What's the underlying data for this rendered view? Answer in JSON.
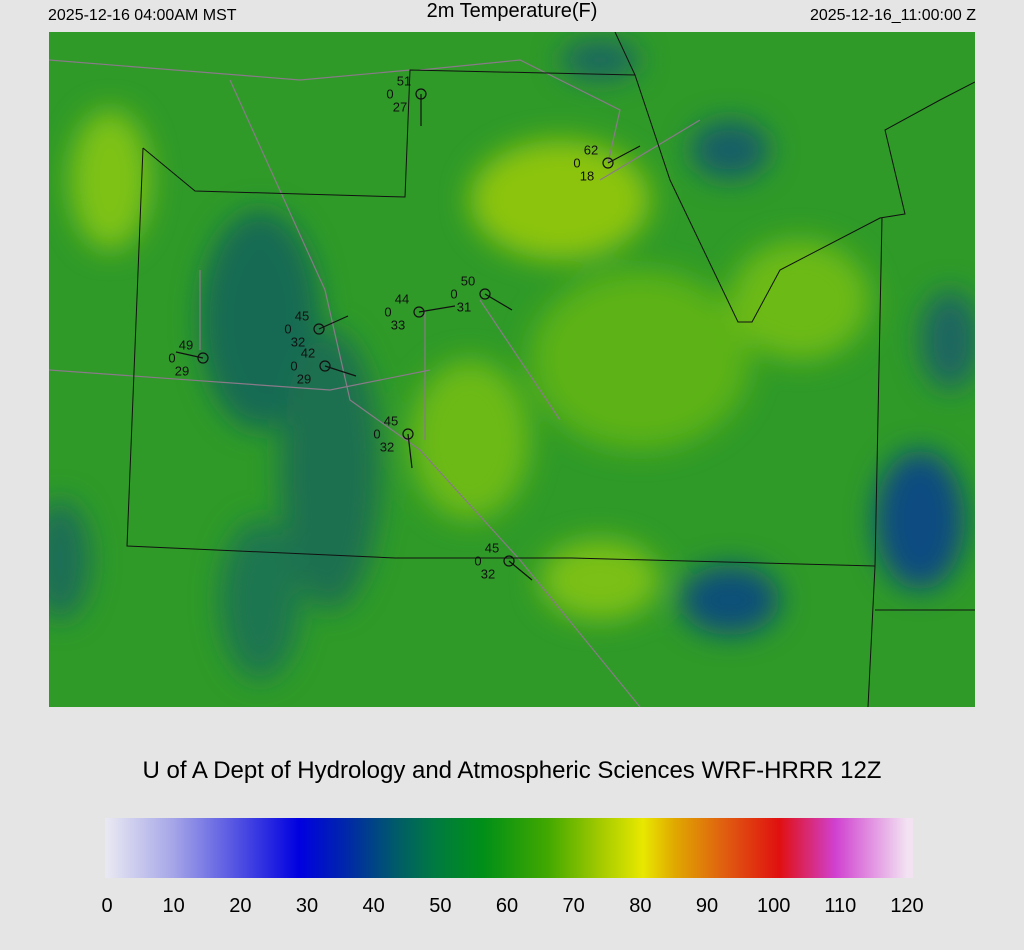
{
  "header": {
    "left": "2025-12-16 04:00AM MST",
    "title": "2m Temperature(F)",
    "right": "2025-12-16_11:00:00 Z"
  },
  "stations": [
    {
      "top": "51",
      "left": "0",
      "bottom": "27"
    },
    {
      "top": "62",
      "left": "0",
      "bottom": "18"
    },
    {
      "top": "50",
      "left": "0",
      "bottom": "31"
    },
    {
      "top": "44",
      "left": "0",
      "bottom": "33"
    },
    {
      "top": "45",
      "left": "0",
      "bottom": "32"
    },
    {
      "top": "42",
      "left": "0",
      "bottom": "29"
    },
    {
      "top": "49",
      "left": "0",
      "bottom": "29"
    },
    {
      "top": "45",
      "left": "0",
      "bottom": "32"
    },
    {
      "top": "45",
      "left": "0",
      "bottom": "32"
    }
  ],
  "footer": "U of A Dept of Hydrology and Atmospheric Sciences WRF-HRRR 12Z",
  "colorbar": {
    "range": [
      0,
      120
    ],
    "ticks": [
      0,
      10,
      20,
      30,
      40,
      50,
      60,
      70,
      80,
      90,
      100,
      110,
      120
    ]
  }
}
